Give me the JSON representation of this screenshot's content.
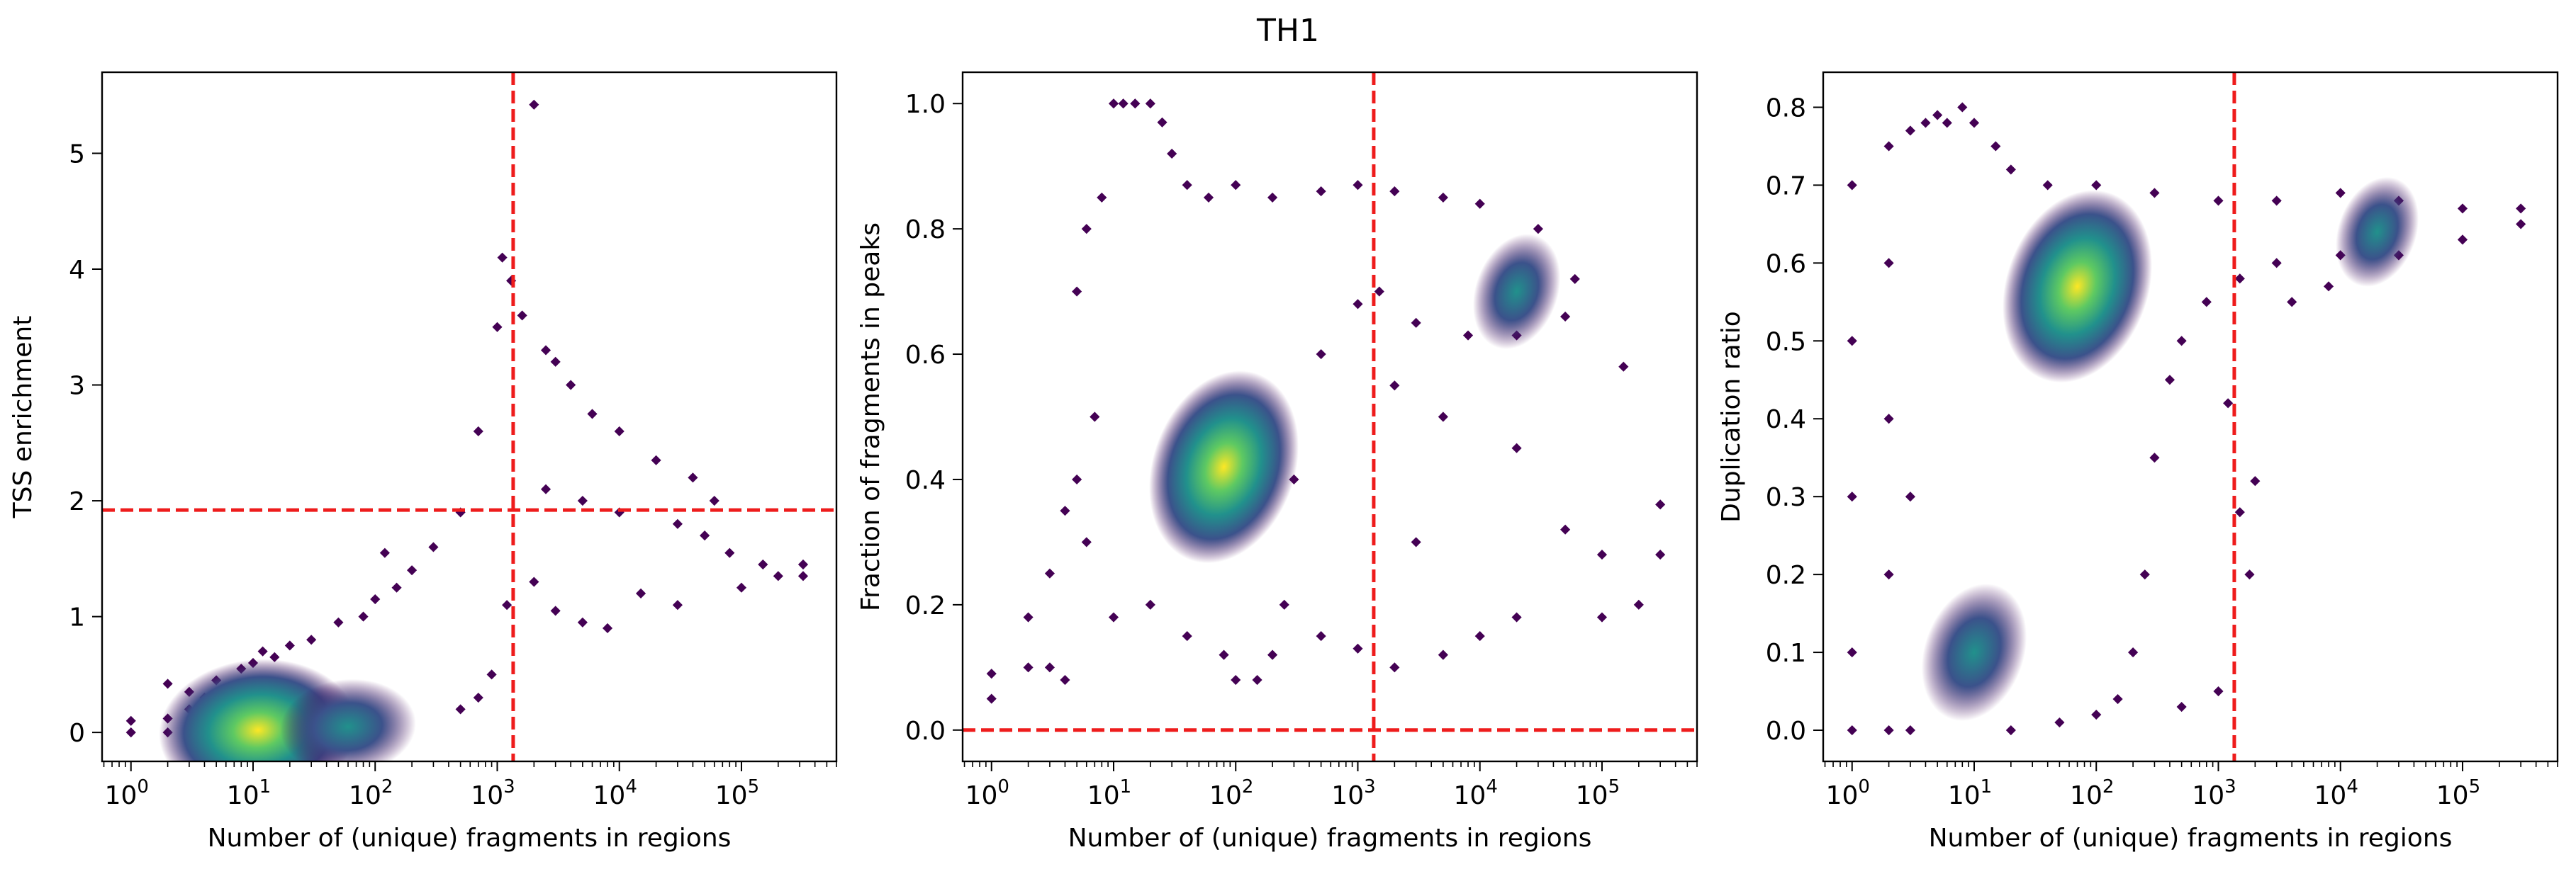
{
  "figure": {
    "title": "TH1"
  },
  "style": {
    "threshold_color": "#ee1c1c",
    "colormap": [
      "#440154",
      "#3b528b",
      "#21918c",
      "#5ec962",
      "#fde725"
    ],
    "frame_color": "#000000"
  },
  "chart_data": [
    {
      "type": "scatter",
      "subtype": "density-colored scatter",
      "title": "",
      "xlabel": "Number of (unique) fragments in regions",
      "ylabel": "TSS enrichment",
      "x_scale": "log",
      "xlim": [
        0.58,
        600000
      ],
      "ylim": [
        -0.25,
        5.7
      ],
      "x_ticks": [
        {
          "value": 1,
          "base": "10",
          "exp": "0"
        },
        {
          "value": 10,
          "base": "10",
          "exp": "1"
        },
        {
          "value": 100,
          "base": "10",
          "exp": "2"
        },
        {
          "value": 1000,
          "base": "10",
          "exp": "3"
        },
        {
          "value": 10000,
          "base": "10",
          "exp": "4"
        },
        {
          "value": 100000,
          "base": "10",
          "exp": "5"
        }
      ],
      "y_ticks": [
        "0",
        "1",
        "2",
        "3",
        "4",
        "5"
      ],
      "grid": false,
      "thresholds": {
        "x": 1350,
        "y": 1.92
      },
      "density_peaks": [
        {
          "x": 11,
          "y": 0.02,
          "level": 1.0
        },
        {
          "x": 60,
          "y": 0.05,
          "level": 0.45
        }
      ],
      "point_cloud": [
        [
          1,
          0
        ],
        [
          1,
          0.1
        ],
        [
          2,
          0
        ],
        [
          2,
          0.12
        ],
        [
          2,
          0.42
        ],
        [
          3,
          0
        ],
        [
          3,
          0.2
        ],
        [
          3,
          0.35
        ],
        [
          4,
          0.05
        ],
        [
          4,
          0.3
        ],
        [
          5,
          0.25
        ],
        [
          5,
          0.45
        ],
        [
          7,
          0.4
        ],
        [
          8,
          0.55
        ],
        [
          10,
          0.6
        ],
        [
          12,
          0.7
        ],
        [
          15,
          0.65
        ],
        [
          20,
          0.75
        ],
        [
          30,
          0.8
        ],
        [
          50,
          0.95
        ],
        [
          80,
          1.0
        ],
        [
          100,
          1.15
        ],
        [
          120,
          1.55
        ],
        [
          150,
          1.25
        ],
        [
          200,
          1.4
        ],
        [
          300,
          1.6
        ],
        [
          500,
          1.9
        ],
        [
          700,
          2.6
        ],
        [
          1000,
          3.5
        ],
        [
          1100,
          4.1
        ],
        [
          1300,
          3.9
        ],
        [
          1600,
          3.6
        ],
        [
          2000,
          5.42
        ],
        [
          2500,
          3.3
        ],
        [
          3000,
          3.2
        ],
        [
          4000,
          3.0
        ],
        [
          6000,
          2.75
        ],
        [
          10000,
          2.6
        ],
        [
          20000,
          2.35
        ],
        [
          40000,
          2.2
        ],
        [
          60000,
          2.0
        ],
        [
          30000,
          1.1
        ],
        [
          15000,
          1.2
        ],
        [
          8000,
          0.9
        ],
        [
          5000,
          0.95
        ],
        [
          3000,
          1.05
        ],
        [
          2000,
          1.3
        ],
        [
          1200,
          1.1
        ],
        [
          900,
          0.5
        ],
        [
          700,
          0.3
        ],
        [
          500,
          0.2
        ],
        [
          150000,
          1.45
        ],
        [
          200000,
          1.35
        ],
        [
          320000,
          1.45
        ],
        [
          320000,
          1.35
        ],
        [
          100000,
          1.25
        ],
        [
          80000,
          1.55
        ],
        [
          50000,
          1.7
        ],
        [
          30000,
          1.8
        ],
        [
          10000,
          1.9
        ],
        [
          5000,
          2.0
        ],
        [
          2500,
          2.1
        ]
      ]
    },
    {
      "type": "scatter",
      "subtype": "density-colored scatter",
      "title": "",
      "xlabel": "Number of (unique) fragments in regions",
      "ylabel": "Fraction of fragments in peaks",
      "x_scale": "log",
      "xlim": [
        0.58,
        600000
      ],
      "ylim": [
        -0.05,
        1.05
      ],
      "x_ticks": [
        {
          "value": 1,
          "base": "10",
          "exp": "0"
        },
        {
          "value": 10,
          "base": "10",
          "exp": "1"
        },
        {
          "value": 100,
          "base": "10",
          "exp": "2"
        },
        {
          "value": 1000,
          "base": "10",
          "exp": "3"
        },
        {
          "value": 10000,
          "base": "10",
          "exp": "4"
        },
        {
          "value": 100000,
          "base": "10",
          "exp": "5"
        }
      ],
      "y_ticks": [
        "0.0",
        "0.2",
        "0.4",
        "0.6",
        "0.8",
        "1.0"
      ],
      "grid": false,
      "thresholds": {
        "x": 1350,
        "y": 0.0
      },
      "density_peaks": [
        {
          "x": 80,
          "y": 0.42,
          "level": 1.0
        },
        {
          "x": 20000,
          "y": 0.7,
          "level": 0.3
        }
      ],
      "point_cloud": [
        [
          1,
          0.05
        ],
        [
          1,
          0.09
        ],
        [
          2,
          0.1
        ],
        [
          2,
          0.18
        ],
        [
          3,
          0.1
        ],
        [
          3,
          0.25
        ],
        [
          4,
          0.08
        ],
        [
          4,
          0.35
        ],
        [
          5,
          0.4
        ],
        [
          5,
          0.7
        ],
        [
          6,
          0.3
        ],
        [
          6,
          0.8
        ],
        [
          7,
          0.5
        ],
        [
          8,
          0.85
        ],
        [
          10,
          1.0
        ],
        [
          12,
          1.0
        ],
        [
          15,
          1.0
        ],
        [
          20,
          1.0
        ],
        [
          25,
          0.97
        ],
        [
          30,
          0.92
        ],
        [
          40,
          0.87
        ],
        [
          60,
          0.85
        ],
        [
          100,
          0.87
        ],
        [
          200,
          0.85
        ],
        [
          500,
          0.86
        ],
        [
          1000,
          0.87
        ],
        [
          2000,
          0.86
        ],
        [
          5000,
          0.85
        ],
        [
          10000,
          0.84
        ],
        [
          30000,
          0.8
        ],
        [
          60000,
          0.72
        ],
        [
          50000,
          0.66
        ],
        [
          20000,
          0.63
        ],
        [
          8000,
          0.63
        ],
        [
          3000,
          0.65
        ],
        [
          1500,
          0.7
        ],
        [
          1000,
          0.68
        ],
        [
          500,
          0.6
        ],
        [
          300,
          0.4
        ],
        [
          250,
          0.2
        ],
        [
          200,
          0.12
        ],
        [
          150,
          0.08
        ],
        [
          100,
          0.08
        ],
        [
          80,
          0.12
        ],
        [
          40,
          0.15
        ],
        [
          20,
          0.2
        ],
        [
          10,
          0.18
        ],
        [
          500,
          0.15
        ],
        [
          1000,
          0.13
        ],
        [
          2000,
          0.1
        ],
        [
          5000,
          0.12
        ],
        [
          10000,
          0.15
        ],
        [
          20000,
          0.18
        ],
        [
          100000,
          0.28
        ],
        [
          150000,
          0.58
        ],
        [
          300000,
          0.36
        ],
        [
          300000,
          0.28
        ],
        [
          200000,
          0.2
        ],
        [
          100000,
          0.18
        ],
        [
          50000,
          0.32
        ],
        [
          20000,
          0.45
        ],
        [
          5000,
          0.5
        ],
        [
          3000,
          0.3
        ],
        [
          2000,
          0.55
        ]
      ]
    },
    {
      "type": "scatter",
      "subtype": "density-colored scatter",
      "title": "",
      "xlabel": "Number of (unique) fragments in regions",
      "ylabel": "Duplication ratio",
      "x_scale": "log",
      "xlim": [
        0.58,
        600000
      ],
      "ylim": [
        -0.04,
        0.845
      ],
      "x_ticks": [
        {
          "value": 1,
          "base": "10",
          "exp": "0"
        },
        {
          "value": 10,
          "base": "10",
          "exp": "1"
        },
        {
          "value": 100,
          "base": "10",
          "exp": "2"
        },
        {
          "value": 1000,
          "base": "10",
          "exp": "3"
        },
        {
          "value": 10000,
          "base": "10",
          "exp": "4"
        },
        {
          "value": 100000,
          "base": "10",
          "exp": "5"
        }
      ],
      "y_ticks": [
        "0.0",
        "0.1",
        "0.2",
        "0.3",
        "0.4",
        "0.5",
        "0.6",
        "0.7",
        "0.8"
      ],
      "grid": false,
      "thresholds": {
        "x": 1350
      },
      "density_peaks": [
        {
          "x": 70,
          "y": 0.57,
          "level": 1.0
        },
        {
          "x": 10,
          "y": 0.1,
          "level": 0.5
        },
        {
          "x": 20000,
          "y": 0.64,
          "level": 0.25
        }
      ],
      "point_cloud": [
        [
          1,
          0.0
        ],
        [
          1,
          0.7
        ],
        [
          1,
          0.5
        ],
        [
          1,
          0.3
        ],
        [
          1,
          0.1
        ],
        [
          2,
          0.0
        ],
        [
          2,
          0.75
        ],
        [
          2,
          0.6
        ],
        [
          2,
          0.4
        ],
        [
          2,
          0.2
        ],
        [
          3,
          0.0
        ],
        [
          3,
          0.77
        ],
        [
          3,
          0.3
        ],
        [
          4,
          0.78
        ],
        [
          5,
          0.79
        ],
        [
          6,
          0.78
        ],
        [
          8,
          0.8
        ],
        [
          10,
          0.78
        ],
        [
          15,
          0.75
        ],
        [
          20,
          0.72
        ],
        [
          40,
          0.7
        ],
        [
          100,
          0.7
        ],
        [
          300,
          0.69
        ],
        [
          1000,
          0.68
        ],
        [
          3000,
          0.68
        ],
        [
          10000,
          0.69
        ],
        [
          30000,
          0.68
        ],
        [
          100000,
          0.67
        ],
        [
          300000,
          0.67
        ],
        [
          300000,
          0.65
        ],
        [
          100000,
          0.63
        ],
        [
          30000,
          0.61
        ],
        [
          10000,
          0.61
        ],
        [
          3000,
          0.6
        ],
        [
          1500,
          0.58
        ],
        [
          800,
          0.55
        ],
        [
          500,
          0.5
        ],
        [
          400,
          0.45
        ],
        [
          300,
          0.35
        ],
        [
          250,
          0.2
        ],
        [
          200,
          0.1
        ],
        [
          150,
          0.04
        ],
        [
          100,
          0.02
        ],
        [
          50,
          0.01
        ],
        [
          20,
          0.0
        ],
        [
          500,
          0.03
        ],
        [
          1000,
          0.05
        ],
        [
          1500,
          0.28
        ],
        [
          2000,
          0.32
        ],
        [
          1800,
          0.2
        ],
        [
          1200,
          0.42
        ],
        [
          4000,
          0.55
        ],
        [
          8000,
          0.57
        ]
      ]
    }
  ]
}
